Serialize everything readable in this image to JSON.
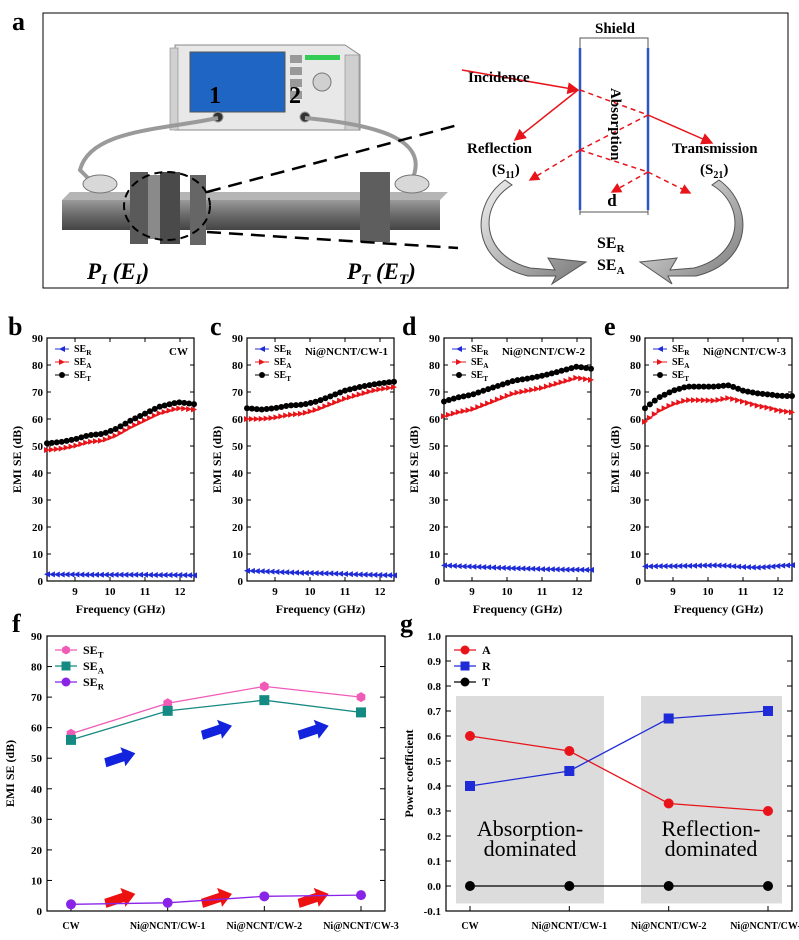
{
  "panel_labels": [
    "a",
    "b",
    "c",
    "d",
    "e",
    "f",
    "g"
  ],
  "schematic": {
    "port_labels": [
      "1",
      "2"
    ],
    "p_in": {
      "main": "P",
      "sub": "I",
      "open": " (E",
      "sub2": "I",
      "close": ")"
    },
    "p_out": {
      "main": "P",
      "sub": "T",
      "open": " (E",
      "sub2": "T",
      "close": ")"
    },
    "shield_label": "Shield",
    "incidence": "Incidence",
    "reflection": "Reflection",
    "reflection_param": {
      "main": "(S",
      "sub": "11",
      "close": ")"
    },
    "absorption": "Absorption",
    "transmission": "Transmission",
    "transmission_param": {
      "main": "(S",
      "sub": "21",
      "close": ")"
    },
    "thickness": "d",
    "se_r": {
      "main": "SE",
      "sub": "R"
    },
    "se_a": {
      "main": "SE",
      "sub": "A"
    }
  },
  "chart_data": [
    {
      "panel": "b",
      "type": "line",
      "title": "CW",
      "xlabel": "Frequency (GHz)",
      "ylabel": "EMI SE (dB)",
      "xlim": [
        8.2,
        12.4
      ],
      "ylim": [
        0,
        90
      ],
      "xticks": [
        9,
        10,
        11,
        12
      ],
      "yticks": [
        0,
        10,
        20,
        30,
        40,
        50,
        60,
        70,
        80,
        90
      ],
      "legend_position": "top-left",
      "x": [
        8.2,
        8.6,
        9.0,
        9.4,
        9.8,
        10.2,
        10.6,
        11.0,
        11.4,
        11.8,
        12.0,
        12.4
      ],
      "series": [
        {
          "name": "SE_R",
          "color": "#1f2bd6",
          "marker": "triangle-left",
          "values": [
            2.5,
            2.4,
            2.4,
            2.3,
            2.3,
            2.3,
            2.3,
            2.3,
            2.2,
            2.2,
            2.2,
            2.1
          ]
        },
        {
          "name": "SE_A",
          "color": "#e8141a",
          "marker": "triangle-right",
          "values": [
            48.5,
            49,
            50,
            51.5,
            52,
            54,
            57,
            59.5,
            62,
            63.5,
            64,
            63.5
          ]
        },
        {
          "name": "SE_T",
          "color": "#000000",
          "marker": "circle",
          "values": [
            51,
            51.5,
            52.5,
            54,
            54.5,
            56.5,
            59.5,
            62,
            64.5,
            65.8,
            66.2,
            65.5
          ]
        }
      ]
    },
    {
      "panel": "c",
      "type": "line",
      "title": "Ni@NCNT/CW-1",
      "xlabel": "Frequency (GHz)",
      "ylabel": "EMI SE (dB)",
      "xlim": [
        8.2,
        12.4
      ],
      "ylim": [
        0,
        90
      ],
      "xticks": [
        9,
        10,
        11,
        12
      ],
      "yticks": [
        0,
        10,
        20,
        30,
        40,
        50,
        60,
        70,
        80,
        90
      ],
      "legend_position": "top-left",
      "x": [
        8.2,
        8.6,
        9.0,
        9.4,
        9.8,
        10.2,
        10.6,
        11.0,
        11.4,
        11.8,
        12.0,
        12.4
      ],
      "series": [
        {
          "name": "SE_R",
          "color": "#1f2bd6",
          "marker": "triangle-left",
          "values": [
            3.8,
            3.6,
            3.4,
            3.2,
            3.0,
            2.9,
            2.8,
            2.6,
            2.4,
            2.3,
            2.2,
            2.1
          ]
        },
        {
          "name": "SE_A",
          "color": "#e8141a",
          "marker": "triangle-right",
          "values": [
            60,
            60,
            60.5,
            61.5,
            62,
            63.5,
            65.5,
            67.5,
            69,
            70.5,
            71,
            71.8
          ]
        },
        {
          "name": "SE_T",
          "color": "#000000",
          "marker": "circle",
          "values": [
            64,
            63.5,
            64,
            65,
            65.3,
            66.5,
            68.5,
            70.5,
            71.8,
            72.8,
            73.2,
            73.8
          ]
        }
      ]
    },
    {
      "panel": "d",
      "type": "line",
      "title": "Ni@NCNT/CW-2",
      "xlabel": "Frequency (GHz)",
      "ylabel": "EMI SE (dB)",
      "xlim": [
        8.2,
        12.4
      ],
      "ylim": [
        0,
        90
      ],
      "xticks": [
        9,
        10,
        11,
        12
      ],
      "yticks": [
        0,
        10,
        20,
        30,
        40,
        50,
        60,
        70,
        80,
        90
      ],
      "legend_position": "top-left",
      "x": [
        8.2,
        8.6,
        9.0,
        9.4,
        9.8,
        10.2,
        10.6,
        11.0,
        11.4,
        11.8,
        12.0,
        12.4
      ],
      "series": [
        {
          "name": "SE_R",
          "color": "#1f2bd6",
          "marker": "triangle-left",
          "values": [
            5.8,
            5.5,
            5.3,
            5.1,
            4.9,
            4.7,
            4.6,
            4.4,
            4.3,
            4.2,
            4.2,
            4.1
          ]
        },
        {
          "name": "SE_A",
          "color": "#e8141a",
          "marker": "triangle-right",
          "values": [
            61,
            62.5,
            63.5,
            65.5,
            67.5,
            69.5,
            70.5,
            71.5,
            73,
            74.5,
            75.3,
            74.5
          ]
        },
        {
          "name": "SE_T",
          "color": "#000000",
          "marker": "circle",
          "values": [
            66.5,
            68,
            69,
            70.8,
            72.5,
            74.2,
            75,
            76,
            77.3,
            78.7,
            79.4,
            78.6
          ]
        }
      ]
    },
    {
      "panel": "e",
      "type": "line",
      "title": "Ni@NCNT/CW-3",
      "xlabel": "Frequency (GHz)",
      "ylabel": "EMI SE (dB)",
      "xlim": [
        8.2,
        12.4
      ],
      "ylim": [
        0,
        90
      ],
      "xticks": [
        9,
        10,
        11,
        12
      ],
      "yticks": [
        0,
        10,
        20,
        30,
        40,
        50,
        60,
        70,
        80,
        90
      ],
      "legend_position": "top-left",
      "x": [
        8.2,
        8.6,
        9.0,
        9.4,
        9.8,
        10.2,
        10.6,
        11.0,
        11.4,
        11.8,
        12.0,
        12.4
      ],
      "series": [
        {
          "name": "SE_R",
          "color": "#1f2bd6",
          "marker": "triangle-left",
          "values": [
            5.4,
            5.5,
            5.5,
            5.6,
            5.7,
            5.8,
            5.6,
            5.2,
            5.0,
            5.3,
            5.6,
            5.9
          ]
        },
        {
          "name": "SE_A",
          "color": "#e8141a",
          "marker": "triangle-right",
          "values": [
            59,
            63,
            65.5,
            67,
            67,
            66.8,
            67.8,
            66.5,
            65,
            64,
            63.2,
            62.5
          ]
        },
        {
          "name": "SE_T",
          "color": "#000000",
          "marker": "circle",
          "values": [
            64,
            68,
            70.5,
            72,
            72,
            72,
            72.5,
            70.5,
            69.5,
            69,
            68.6,
            68.5
          ]
        }
      ]
    },
    {
      "panel": "f",
      "type": "line",
      "title": "",
      "xlabel": "",
      "ylabel": "EMI SE (dB)",
      "ylim": [
        0,
        90
      ],
      "yticks": [
        0,
        10,
        20,
        30,
        40,
        50,
        60,
        70,
        80,
        90
      ],
      "legend_position": "top-left",
      "categories": [
        "CW",
        "Ni@NCNT/CW-1",
        "Ni@NCNT/CW-2",
        "Ni@NCNT/CW-3"
      ],
      "series": [
        {
          "name": "SE_T",
          "color": "#f05bb8",
          "marker": "hexagon",
          "values": [
            58,
            68,
            73.5,
            70
          ]
        },
        {
          "name": "SE_A",
          "color": "#158a82",
          "marker": "square",
          "values": [
            56,
            65.5,
            69,
            65
          ]
        },
        {
          "name": "SE_R",
          "color": "#8a23e8",
          "marker": "circle",
          "values": [
            2.2,
            2.7,
            4.8,
            5.2
          ]
        }
      ],
      "decorative_arrow_colors": {
        "upper": "#1222dd",
        "lower": "#ee1111"
      }
    },
    {
      "panel": "g",
      "type": "line",
      "title": "",
      "xlabel": "",
      "ylabel": "Power coefficient",
      "ylim": [
        -0.1,
        1.0
      ],
      "yticks": [
        -0.1,
        0.0,
        0.1,
        0.2,
        0.3,
        0.4,
        0.5,
        0.6,
        0.7,
        0.8,
        0.9,
        1.0
      ],
      "legend_position": "top-left",
      "categories": [
        "CW",
        "Ni@NCNT/CW-1",
        "Ni@NCNT/CW-2",
        "Ni@NCNT/CW-3"
      ],
      "series": [
        {
          "name": "A",
          "color": "#e8141a",
          "marker": "circle",
          "values": [
            0.6,
            0.54,
            0.33,
            0.3
          ]
        },
        {
          "name": "R",
          "color": "#1f2bd6",
          "marker": "square",
          "values": [
            0.4,
            0.46,
            0.67,
            0.7
          ]
        },
        {
          "name": "T",
          "color": "#000000",
          "marker": "circle",
          "values": [
            0.0,
            0.0,
            0.0,
            0.0
          ]
        }
      ],
      "annotations": {
        "left": [
          "Absorption-",
          "dominated"
        ],
        "right": [
          "Reflection-",
          "dominated"
        ]
      },
      "shade_color": "#dcdcdc"
    }
  ]
}
